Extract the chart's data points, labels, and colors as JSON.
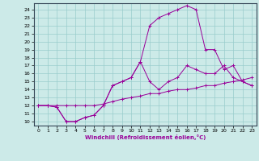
{
  "xlabel": "Windchill (Refroidissement éolien,°C)",
  "bg_color": "#cceae8",
  "line_color": "#990099",
  "grid_color": "#99cccc",
  "xlim": [
    -0.5,
    23.5
  ],
  "ylim": [
    9.5,
    24.8
  ],
  "yticks": [
    10,
    11,
    12,
    13,
    14,
    15,
    16,
    17,
    18,
    19,
    20,
    21,
    22,
    23,
    24
  ],
  "xticks": [
    0,
    1,
    2,
    3,
    4,
    5,
    6,
    7,
    8,
    9,
    10,
    11,
    12,
    13,
    14,
    15,
    16,
    17,
    18,
    19,
    20,
    21,
    22,
    23
  ],
  "line1_x": [
    0,
    1,
    2,
    3,
    4,
    5,
    6,
    7,
    8,
    9,
    10,
    11,
    12,
    13,
    14,
    15,
    16,
    17,
    18,
    19,
    20,
    21,
    22,
    23
  ],
  "line1_y": [
    12,
    12,
    12,
    12,
    12,
    12,
    12,
    12.2,
    12.5,
    12.8,
    13,
    13.2,
    13.5,
    13.5,
    13.8,
    14,
    14,
    14.2,
    14.5,
    14.5,
    14.8,
    15,
    15.2,
    15.5
  ],
  "line2_x": [
    0,
    1,
    2,
    3,
    4,
    5,
    6,
    7,
    8,
    9,
    10,
    11,
    12,
    13,
    14,
    15,
    16,
    17,
    18,
    19,
    20,
    21,
    22,
    23
  ],
  "line2_y": [
    12,
    12,
    11.8,
    10,
    10,
    10.5,
    10.8,
    12,
    14.5,
    15,
    15.5,
    17.5,
    22,
    23,
    23.5,
    24,
    24.5,
    24,
    19,
    19,
    16.5,
    17,
    15,
    14.5
  ],
  "line3_x": [
    0,
    1,
    2,
    3,
    4,
    5,
    6,
    7,
    8,
    9,
    10,
    11,
    12,
    13,
    14,
    15,
    16,
    17,
    18,
    19,
    20,
    21,
    22,
    23
  ],
  "line3_y": [
    12,
    12,
    11.8,
    10,
    10,
    10.5,
    10.8,
    12,
    14.5,
    15,
    15.5,
    17.5,
    15,
    14,
    15,
    15.5,
    17,
    16.5,
    16,
    16,
    17,
    15.5,
    15,
    14.5
  ]
}
